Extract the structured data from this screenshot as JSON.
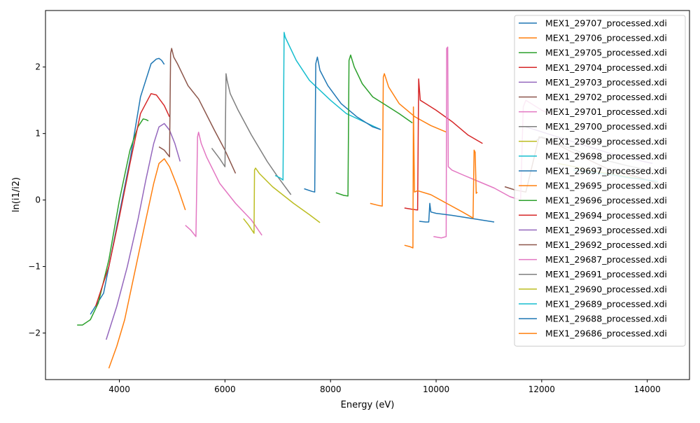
{
  "chart_data": {
    "type": "line",
    "title": "",
    "xlabel": "Energy (eV)",
    "ylabel": "ln(i1/i2)",
    "xlim": [
      2600,
      14800
    ],
    "ylim": [
      -2.7,
      2.85
    ],
    "x_ticks": [
      4000,
      6000,
      8000,
      10000,
      12000,
      14000
    ],
    "x_tick_labels": [
      "4000",
      "6000",
      "8000",
      "10000",
      "12000",
      "14000"
    ],
    "y_ticks": [
      -2,
      -1,
      0,
      1,
      2
    ],
    "y_tick_labels": [
      "−2",
      "−1",
      "0",
      "1",
      "2"
    ],
    "grid": false,
    "legend_position": "top-right",
    "series": [
      {
        "name": "MEX1_29707_processed.xdi",
        "color": "#1f77b4",
        "x": [
          3450,
          3700,
          4000,
          4200,
          4400,
          4600,
          4700,
          4750,
          4800,
          4850
        ],
        "y": [
          -1.72,
          -1.4,
          -0.2,
          0.6,
          1.55,
          2.05,
          2.12,
          2.13,
          2.1,
          2.04
        ]
      },
      {
        "name": "MEX1_29706_processed.xdi",
        "color": "#ff7f0e",
        "x": [
          3800,
          3950,
          4100,
          4300,
          4500,
          4650,
          4750,
          4850,
          4950,
          5100,
          5250
        ],
        "y": [
          -2.53,
          -2.2,
          -1.8,
          -1.05,
          -0.3,
          0.25,
          0.55,
          0.62,
          0.5,
          0.2,
          -0.15
        ]
      },
      {
        "name": "MEX1_29705_processed.xdi",
        "color": "#2ca02c",
        "x": [
          3200,
          3300,
          3450,
          3600,
          3800,
          4000,
          4200,
          4350,
          4450,
          4500,
          4550
        ],
        "y": [
          -1.88,
          -1.88,
          -1.8,
          -1.55,
          -0.9,
          0.0,
          0.75,
          1.1,
          1.22,
          1.21,
          1.19
        ]
      },
      {
        "name": "MEX1_29704_processed.xdi",
        "color": "#d62728",
        "x": [
          3550,
          3800,
          4000,
          4200,
          4400,
          4600,
          4700,
          4850,
          4950
        ],
        "y": [
          -1.6,
          -1.0,
          -0.25,
          0.55,
          1.3,
          1.6,
          1.58,
          1.42,
          1.25
        ]
      },
      {
        "name": "MEX1_29703_processed.xdi",
        "color": "#9467bd",
        "x": [
          3750,
          3950,
          4150,
          4350,
          4500,
          4650,
          4750,
          4850,
          4950,
          5050,
          5150
        ],
        "y": [
          -2.1,
          -1.6,
          -1.0,
          -0.3,
          0.3,
          0.85,
          1.1,
          1.15,
          1.05,
          0.85,
          0.58
        ]
      },
      {
        "name": "MEX1_29702_processed.xdi",
        "color": "#8c564b",
        "x": [
          4750,
          4850,
          4950,
          4970,
          4990,
          5030,
          5100,
          5300,
          5500,
          5800,
          6000,
          6200
        ],
        "y": [
          0.8,
          0.75,
          0.65,
          2.2,
          2.28,
          2.15,
          2.05,
          1.72,
          1.52,
          1.05,
          0.75,
          0.4
        ]
      },
      {
        "name": "MEX1_29701_processed.xdi",
        "color": "#e377c2",
        "x": [
          5250,
          5350,
          5450,
          5480,
          5500,
          5550,
          5650,
          5900,
          6200,
          6500,
          6700
        ],
        "y": [
          -0.38,
          -0.45,
          -0.55,
          0.95,
          1.02,
          0.85,
          0.65,
          0.25,
          -0.05,
          -0.3,
          -0.53
        ]
      },
      {
        "name": "MEX1_29700_processed.xdi",
        "color": "#7f7f7f",
        "x": [
          5750,
          5900,
          6000,
          6020,
          6040,
          6100,
          6250,
          6500,
          6800,
          7000,
          7250
        ],
        "y": [
          0.78,
          0.62,
          0.5,
          1.9,
          1.8,
          1.6,
          1.35,
          0.98,
          0.58,
          0.35,
          0.08
        ]
      },
      {
        "name": "MEX1_29699_processed.xdi",
        "color": "#bcbd22",
        "x": [
          6350,
          6450,
          6550,
          6560,
          6580,
          6650,
          6900,
          7300,
          7600,
          7800
        ],
        "y": [
          -0.28,
          -0.38,
          -0.5,
          0.45,
          0.48,
          0.4,
          0.2,
          -0.05,
          -0.22,
          -0.34
        ]
      },
      {
        "name": "MEX1_29698_processed.xdi",
        "color": "#17becf",
        "x": [
          6950,
          7050,
          7100,
          7120,
          7140,
          7200,
          7350,
          7600,
          8000,
          8300,
          8950
        ],
        "y": [
          0.37,
          0.33,
          0.3,
          2.52,
          2.45,
          2.35,
          2.1,
          1.8,
          1.5,
          1.3,
          1.06
        ]
      },
      {
        "name": "MEX1_29697_processed.xdi",
        "color": "#1f77b4",
        "x": [
          7500,
          7650,
          7700,
          7720,
          7750,
          7800,
          7950,
          8200,
          8500,
          8800,
          8950
        ],
        "y": [
          0.17,
          0.13,
          0.12,
          2.05,
          2.15,
          1.95,
          1.72,
          1.45,
          1.25,
          1.1,
          1.06
        ]
      },
      {
        "name": "MEX1_29695_processed.xdi",
        "color": "#ff7f0e",
        "x": [
          8750,
          8900,
          8980,
          9000,
          9020,
          9100,
          9300,
          9600,
          9900,
          10200
        ],
        "y": [
          -0.05,
          -0.08,
          -0.09,
          1.85,
          1.9,
          1.7,
          1.45,
          1.25,
          1.12,
          1.02
        ]
      },
      {
        "name": "MEX1_29696_processed.xdi",
        "color": "#2ca02c",
        "x": [
          8100,
          8250,
          8330,
          8350,
          8380,
          8450,
          8600,
          8800,
          9000,
          9300,
          9550
        ],
        "y": [
          0.11,
          0.07,
          0.06,
          2.1,
          2.18,
          2.0,
          1.75,
          1.55,
          1.45,
          1.3,
          1.16
        ]
      },
      {
        "name": "MEX1_29694_processed.xdi",
        "color": "#d62728",
        "x": [
          9400,
          9550,
          9650,
          9670,
          9700,
          9800,
          10000,
          10300,
          10600,
          10880
        ],
        "y": [
          -0.12,
          -0.14,
          -0.15,
          1.82,
          1.5,
          1.45,
          1.35,
          1.18,
          0.98,
          0.85
        ]
      },
      {
        "name": "MEX1_29693_processed.xdi",
        "color": "#9467bd",
        "x": [
          11700,
          11900,
          12100,
          12500,
          12900,
          13300,
          13700,
          14100
        ],
        "y": [
          1.1,
          1.05,
          1.0,
          0.9,
          0.8,
          0.7,
          0.62,
          0.55
        ]
      },
      {
        "name": "MEX1_29692_processed.xdi",
        "color": "#8c564b",
        "x": [
          11300,
          11500,
          11700,
          11950,
          12150,
          12500,
          12900,
          13300,
          13800,
          14200
        ],
        "y": [
          0.2,
          0.15,
          0.12,
          0.95,
          0.9,
          0.75,
          0.6,
          0.45,
          0.35,
          0.25
        ]
      },
      {
        "name": "MEX1_29687_processed.xdi",
        "color": "#e377c2",
        "x": [
          9950,
          10100,
          10190,
          10200,
          10220,
          10230,
          10300,
          10500,
          10800,
          11100,
          11400,
          11600,
          11650,
          11700,
          11800,
          12000,
          12200
        ],
        "y": [
          -0.55,
          -0.57,
          -0.55,
          2.28,
          2.3,
          0.5,
          0.45,
          0.38,
          0.28,
          0.18,
          0.05,
          0.0,
          1.4,
          1.5,
          1.45,
          1.35,
          1.28
        ]
      },
      {
        "name": "MEX1_29691_processed.xdi",
        "color": "#7f7f7f",
        "x": [
          11900,
          12000,
          12100,
          12400,
          12800,
          13200,
          13600,
          14000
        ],
        "y": [
          0.9,
          0.95,
          0.92,
          0.82,
          0.7,
          0.6,
          0.52,
          0.45
        ]
      },
      {
        "name": "MEX1_29690_processed.xdi",
        "color": "#bcbd22",
        "x": [
          12300,
          12500,
          12800,
          13100,
          13400,
          13700,
          14000
        ],
        "y": [
          0.55,
          0.52,
          0.47,
          0.42,
          0.38,
          0.34,
          0.3
        ]
      },
      {
        "name": "MEX1_29689_processed.xdi",
        "color": "#17becf",
        "x": [
          12600,
          12800,
          13100,
          13400,
          13700,
          14000,
          14200
        ],
        "y": [
          0.45,
          0.43,
          0.4,
          0.37,
          0.33,
          0.3,
          0.28
        ]
      },
      {
        "name": "MEX1_29688_processed.xdi",
        "color": "#1f77b4",
        "x": [
          9680,
          9800,
          9860,
          9880,
          9900,
          10000,
          10300,
          10700,
          11100
        ],
        "y": [
          -0.32,
          -0.33,
          -0.33,
          -0.05,
          -0.18,
          -0.2,
          -0.23,
          -0.28,
          -0.33
        ]
      },
      {
        "name": "MEX1_29686_processed.xdi",
        "color": "#ff7f0e",
        "x": [
          9400,
          9500,
          9560,
          9570,
          9590,
          9650,
          9900,
          10200,
          10500,
          10700,
          10720,
          10740,
          10760,
          10780
        ],
        "y": [
          -0.68,
          -0.7,
          -0.72,
          1.4,
          0.12,
          0.14,
          0.08,
          -0.05,
          -0.18,
          -0.27,
          0.75,
          0.72,
          0.1,
          0.12
        ]
      }
    ]
  }
}
